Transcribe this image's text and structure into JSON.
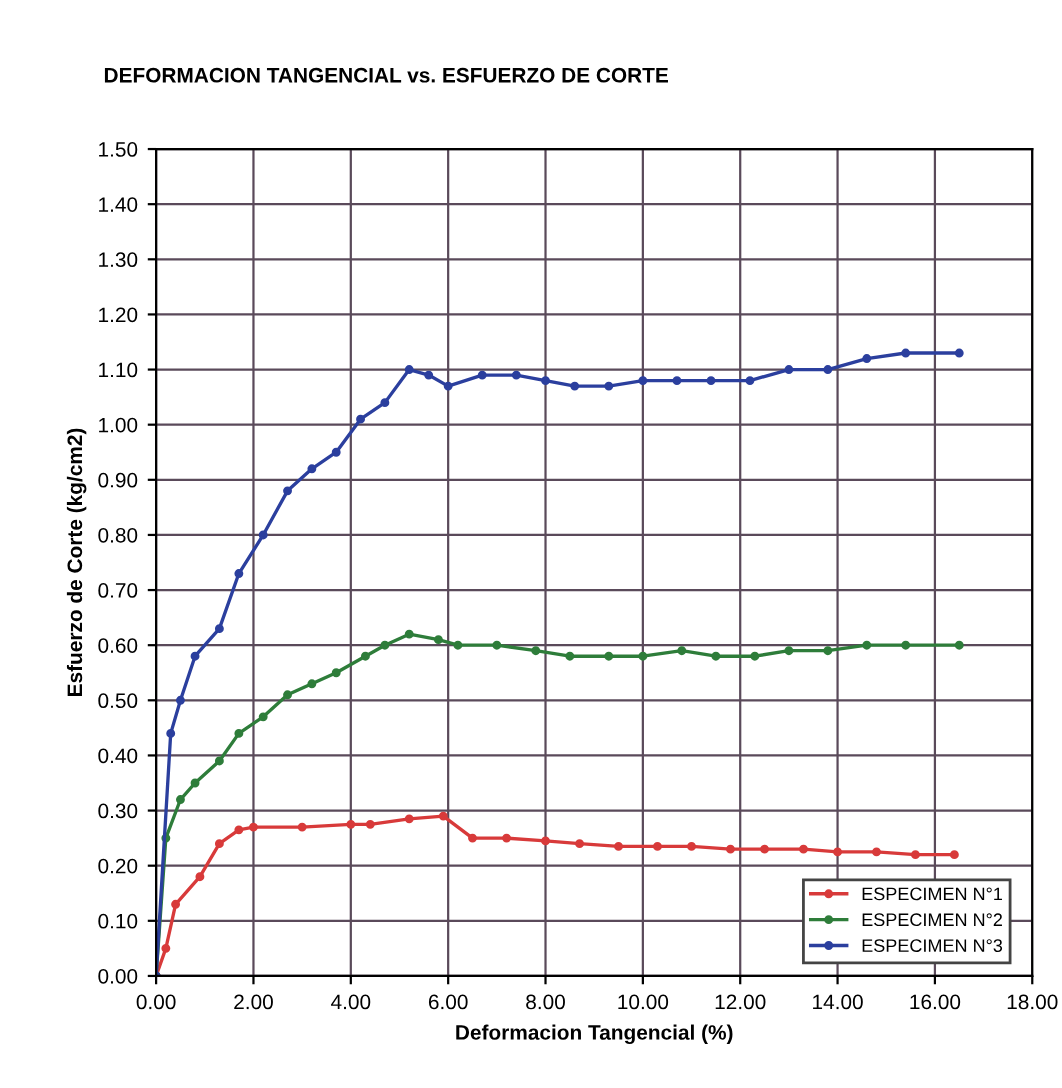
{
  "chart_data": {
    "type": "line",
    "title": "DEFORMACION TANGENCIAL vs. ESFUERZO DE CORTE",
    "xlabel": "Deformacion Tangencial (%)",
    "ylabel": "Esfuerzo de Corte (kg/cm2)",
    "xlim": [
      0,
      18
    ],
    "ylim": [
      0,
      1.5
    ],
    "xticks": [
      {
        "value": 0,
        "label": "0.00"
      },
      {
        "value": 2,
        "label": "2.00"
      },
      {
        "value": 4,
        "label": "4.00"
      },
      {
        "value": 6,
        "label": "6.00"
      },
      {
        "value": 8,
        "label": "8.00"
      },
      {
        "value": 10,
        "label": "10.00"
      },
      {
        "value": 12,
        "label": "12.00"
      },
      {
        "value": 14,
        "label": "14.00"
      },
      {
        "value": 16,
        "label": "16.00"
      },
      {
        "value": 18,
        "label": "18.00"
      }
    ],
    "yticks": [
      {
        "value": 0,
        "label": "0.00"
      },
      {
        "value": 0.1,
        "label": "0.10"
      },
      {
        "value": 0.2,
        "label": "0.20"
      },
      {
        "value": 0.3,
        "label": "0.30"
      },
      {
        "value": 0.4,
        "label": "0.40"
      },
      {
        "value": 0.5,
        "label": "0.50"
      },
      {
        "value": 0.6,
        "label": "0.60"
      },
      {
        "value": 0.7,
        "label": "0.70"
      },
      {
        "value": 0.8,
        "label": "0.80"
      },
      {
        "value": 0.9,
        "label": "0.90"
      },
      {
        "value": 1.0,
        "label": "1.00"
      },
      {
        "value": 1.1,
        "label": "1.10"
      },
      {
        "value": 1.2,
        "label": "1.20"
      },
      {
        "value": 1.3,
        "label": "1.30"
      },
      {
        "value": 1.4,
        "label": "1.40"
      },
      {
        "value": 1.5,
        "label": "1.50"
      }
    ],
    "grid": true,
    "legend": "bottom right",
    "marker": "circle",
    "line_style": "solid",
    "series": [
      {
        "name": "ESPECIMEN N°1",
        "color": "#d83a3a",
        "x": [
          0,
          0.2,
          0.4,
          0.9,
          1.3,
          1.7,
          2.0,
          3.0,
          4.0,
          4.4,
          5.2,
          5.9,
          6.5,
          7.2,
          8.0,
          8.7,
          9.5,
          10.3,
          11.0,
          11.8,
          12.5,
          13.3,
          14.0,
          14.8,
          15.6,
          16.4
        ],
        "values": [
          0,
          0.05,
          0.13,
          0.18,
          0.24,
          0.265,
          0.27,
          0.27,
          0.275,
          0.275,
          0.285,
          0.29,
          0.25,
          0.25,
          0.245,
          0.24,
          0.235,
          0.235,
          0.235,
          0.23,
          0.23,
          0.23,
          0.225,
          0.225,
          0.22,
          0.22
        ]
      },
      {
        "name": "ESPECIMEN N°2",
        "color": "#2e7d3a",
        "x": [
          0,
          0.2,
          0.5,
          0.8,
          1.3,
          1.7,
          2.2,
          2.7,
          3.2,
          3.7,
          4.3,
          4.7,
          5.2,
          5.8,
          6.2,
          7.0,
          7.8,
          8.5,
          9.3,
          10.0,
          10.8,
          11.5,
          12.3,
          13.0,
          13.8,
          14.6,
          15.4,
          16.5
        ],
        "values": [
          0,
          0.25,
          0.32,
          0.35,
          0.39,
          0.44,
          0.47,
          0.51,
          0.53,
          0.55,
          0.58,
          0.6,
          0.62,
          0.61,
          0.6,
          0.6,
          0.59,
          0.58,
          0.58,
          0.58,
          0.59,
          0.58,
          0.58,
          0.59,
          0.59,
          0.6,
          0.6,
          0.6
        ]
      },
      {
        "name": "ESPECIMEN N°3",
        "color": "#2b3f9e",
        "x": [
          0,
          0.3,
          0.5,
          0.8,
          1.3,
          1.7,
          2.2,
          2.7,
          3.2,
          3.7,
          4.2,
          4.7,
          5.2,
          5.6,
          6.0,
          6.7,
          7.4,
          8.0,
          8.6,
          9.3,
          10.0,
          10.7,
          11.4,
          12.2,
          13.0,
          13.8,
          14.6,
          15.4,
          16.5
        ],
        "values": [
          0,
          0.44,
          0.5,
          0.58,
          0.63,
          0.73,
          0.8,
          0.88,
          0.92,
          0.95,
          1.01,
          1.04,
          1.1,
          1.09,
          1.07,
          1.09,
          1.09,
          1.08,
          1.07,
          1.07,
          1.08,
          1.08,
          1.08,
          1.08,
          1.1,
          1.1,
          1.12,
          1.13,
          1.13
        ]
      }
    ]
  }
}
